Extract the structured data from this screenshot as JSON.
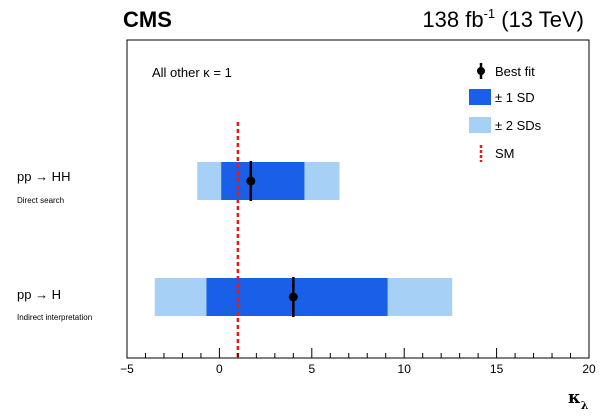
{
  "header": {
    "experiment": "CMS",
    "lumi_value": "138 fb",
    "lumi_exponent": "-1",
    "energy": "(13 TeV)"
  },
  "annotation": "All other κ = 1",
  "colors": {
    "one_sd": "#1a5fe8",
    "two_sd": "#a6d0f5",
    "sm_line": "#e21b1b",
    "best_fit": "#000000"
  },
  "chart_data": {
    "type": "interval",
    "xlabel": "κ",
    "xlabel_subscript": "λ",
    "xlim": [
      -5,
      20
    ],
    "xticks": [
      -5,
      0,
      5,
      10,
      15,
      20
    ],
    "xtick_labels": [
      "−5",
      "0",
      "5",
      "10",
      "15",
      "20"
    ],
    "sm_value": 1,
    "legend": {
      "position": "top-right",
      "best_fit": "Best fit",
      "one_sd": "± 1 SD",
      "two_sd": "± 2 SDs",
      "sm": "SM"
    },
    "rows": [
      {
        "process": "pp → HH",
        "subtitle": "Direct search",
        "best_fit": 1.7,
        "one_sd": [
          0.1,
          4.6
        ],
        "two_sd": [
          -1.2,
          6.5
        ],
        "bar": [
          1.7,
          1.7
        ]
      },
      {
        "process": "pp → H",
        "subtitle": "Indirect interpretation",
        "best_fit": 4.0,
        "one_sd": [
          -0.7,
          9.1
        ],
        "two_sd": [
          -3.5,
          12.6
        ],
        "bar": [
          4.0,
          4.0
        ]
      }
    ]
  }
}
